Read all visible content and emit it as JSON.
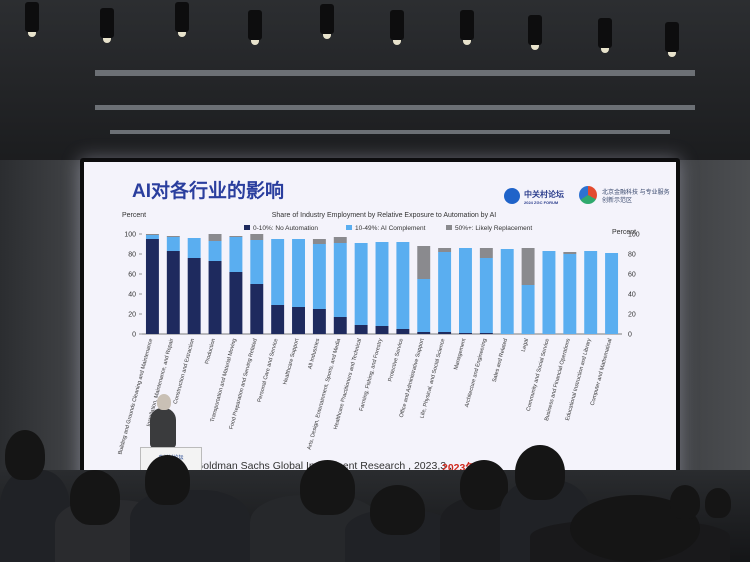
{
  "slide": {
    "title": "AI对各行业的影响",
    "logo1_text": "中关村论坛",
    "logo1_subtext": "2024 ZGC FORUM",
    "logo2_text": "北京金融科技 与专业服务创新示范区"
  },
  "chart_data": {
    "type": "bar",
    "title": "Share of Industry Employment by Relative Exposure to Automation by AI",
    "ylabel_left": "Percent",
    "ylabel_right": "Percent",
    "ylim": [
      0,
      100
    ],
    "yticks": [
      0,
      20,
      40,
      60,
      80,
      100
    ],
    "legend": [
      "0-10%: No Automation",
      "10-49%: AI Complement",
      "50%+: Likely Replacement"
    ],
    "legend_position": "top",
    "stacked": true,
    "categories": [
      "Building and Grounds Cleaning and Maintenance",
      "Installation, Maintenance, and Repair",
      "Construction and Extraction",
      "Production",
      "Transportation and Material Moving",
      "Food Preparation and Serving Related",
      "Personal Care and Service",
      "Healthcare Support",
      "All Industries",
      "Arts, Design, Entertainment, Sports, and Media",
      "Healthcare Practitioners and Technical",
      "Farming, Fishing, and Forestry",
      "Protective Service",
      "Office and Administrative Support",
      "Life, Physical, and Social Science",
      "Management",
      "Architecture and Engineering",
      "Sales and Related",
      "Legal",
      "Community and Social Service",
      "Business and Financial Operations",
      "Educational Instruction and Library",
      "Computer and Mathematical"
    ],
    "series": [
      {
        "name": "0-10%: No Automation",
        "color": "#1e2a5e",
        "values": [
          95,
          83,
          76,
          73,
          62,
          50,
          29,
          27,
          25,
          17,
          9,
          8,
          5,
          2,
          2,
          1,
          1,
          0,
          0,
          0,
          0,
          0,
          0
        ]
      },
      {
        "name": "10-49%: AI Complement",
        "color": "#5aaef0",
        "values": [
          4,
          14,
          20,
          20,
          35,
          44,
          66,
          68,
          65,
          74,
          82,
          84,
          87,
          53,
          80,
          85,
          75,
          85,
          49,
          83,
          80,
          83,
          81
        ]
      },
      {
        "name": "50%+: Likely Replacement",
        "color": "#8a8a8e",
        "values": [
          1,
          1,
          0,
          7,
          1,
          6,
          0,
          0,
          5,
          6,
          0,
          0,
          0,
          33,
          4,
          0,
          10,
          0,
          37,
          0,
          2,
          0,
          0
        ]
      }
    ]
  },
  "source": {
    "text": "Source: Goldman Sachs Global Investment Research ,  2023,3 ,",
    "red_text": "2023年"
  },
  "podium": {
    "label": "中关村论坛"
  }
}
